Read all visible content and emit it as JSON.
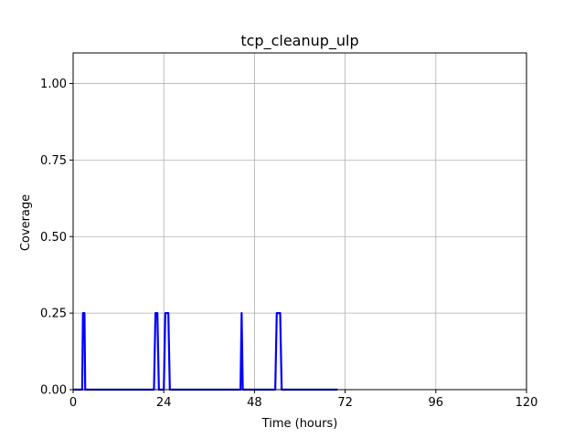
{
  "chart_data": {
    "type": "line",
    "title": "tcp_cleanup_ulp",
    "xlabel": "Time (hours)",
    "ylabel": "Coverage",
    "xlim": [
      0,
      120
    ],
    "ylim": [
      0,
      1.1
    ],
    "xticks": [
      0,
      24,
      48,
      72,
      96,
      120
    ],
    "yticks": [
      0.0,
      0.25,
      0.5,
      0.75,
      1.0
    ],
    "xtick_labels": [
      "0",
      "24",
      "48",
      "72",
      "96",
      "120"
    ],
    "ytick_labels": [
      "0.00",
      "0.25",
      "0.50",
      "0.75",
      "1.00"
    ],
    "grid": true,
    "series": [
      {
        "color": "#0000ff",
        "x": [
          0,
          2.4,
          2.6,
          3.0,
          3.2,
          21.4,
          21.8,
          22.3,
          22.7,
          24.0,
          24.4,
          25.2,
          25.6,
          44.3,
          44.6,
          44.9,
          53.5,
          53.9,
          54.8,
          55.2,
          70
        ],
        "y": [
          0,
          0,
          0.25,
          0.25,
          0,
          0,
          0.25,
          0.25,
          0,
          0,
          0.25,
          0.25,
          0,
          0,
          0.25,
          0,
          0,
          0.25,
          0.25,
          0,
          0
        ]
      }
    ]
  }
}
